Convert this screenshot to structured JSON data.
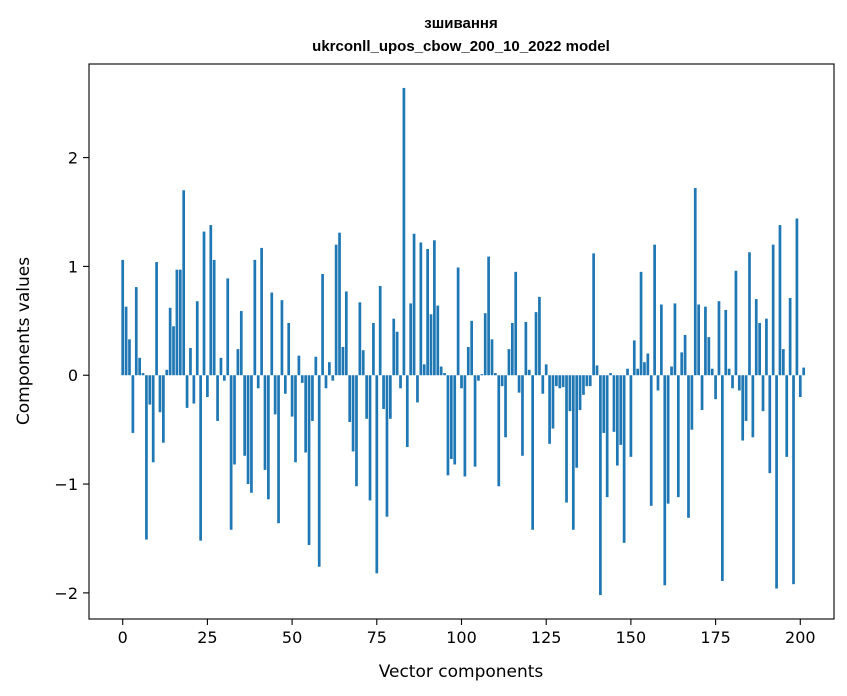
{
  "chart_data": {
    "type": "bar",
    "title": "зшивання",
    "subtitle": "ukrconll_upos_cbow_200_10_2022 model",
    "xlabel": "Vector components",
    "ylabel": "Components values",
    "xlim": [
      -9.95,
      209.95
    ],
    "ylim": [
      -2.24,
      2.86
    ],
    "xticks": [
      0,
      25,
      50,
      75,
      100,
      125,
      150,
      175,
      200
    ],
    "xtick_labels": [
      "0",
      "25",
      "50",
      "75",
      "100",
      "125",
      "150",
      "175",
      "200"
    ],
    "yticks": [
      -2,
      -1,
      0,
      1,
      2
    ],
    "ytick_labels": [
      "−2",
      "−1",
      "0",
      "1",
      "2"
    ],
    "grid": false,
    "bar_color": "#1f77b4",
    "values": [
      1.06,
      0.63,
      0.33,
      -0.53,
      0.81,
      0.16,
      0.02,
      -1.51,
      -0.27,
      -0.8,
      1.04,
      -0.34,
      -0.62,
      0.05,
      0.62,
      0.45,
      0.97,
      0.97,
      1.7,
      -0.3,
      0.25,
      -0.26,
      0.68,
      -1.52,
      1.32,
      -0.2,
      1.38,
      1.06,
      -0.42,
      0.16,
      -0.05,
      0.89,
      -1.42,
      -0.82,
      0.24,
      0.59,
      -0.74,
      -1.0,
      -1.08,
      1.06,
      -0.12,
      1.17,
      -0.87,
      -1.14,
      0.76,
      -0.36,
      -1.36,
      0.69,
      -0.17,
      0.48,
      -0.38,
      -0.8,
      0.18,
      -0.07,
      -0.71,
      -1.56,
      -0.42,
      0.17,
      -1.76,
      0.93,
      -0.12,
      0.12,
      -0.05,
      1.2,
      1.31,
      0.26,
      0.77,
      -0.43,
      -0.7,
      -1.02,
      0.67,
      0.23,
      -0.4,
      -1.15,
      0.48,
      -1.82,
      0.82,
      -0.31,
      -1.3,
      -0.4,
      0.52,
      0.4,
      -0.12,
      2.64,
      -0.66,
      0.66,
      1.3,
      -0.25,
      1.22,
      0.1,
      1.16,
      0.56,
      1.24,
      0.64,
      0.08,
      0.02,
      -0.92,
      -0.77,
      -0.82,
      0.99,
      -0.12,
      -0.93,
      0.26,
      0.5,
      -0.84,
      -0.05,
      0.01,
      0.57,
      1.09,
      0.33,
      0.02,
      -1.02,
      -0.1,
      -0.57,
      0.24,
      0.48,
      0.95,
      -0.16,
      -0.74,
      0.49,
      0.05,
      -1.42,
      0.58,
      0.72,
      -0.17,
      0.1,
      -0.63,
      -0.49,
      -0.1,
      -0.12,
      -0.11,
      -1.17,
      -0.33,
      -1.42,
      -0.85,
      -0.32,
      -0.18,
      -0.1,
      -0.1,
      1.12,
      0.09,
      -2.02,
      -0.53,
      -1.12,
      0.02,
      -0.52,
      -0.83,
      -0.64,
      -1.54,
      0.06,
      -0.75,
      0.32,
      0.06,
      0.95,
      0.12,
      0.2,
      -1.2,
      1.2,
      -0.14,
      0.65,
      -1.93,
      -1.18,
      0.08,
      0.66,
      -1.12,
      0.21,
      0.37,
      -1.31,
      -0.5,
      1.72,
      0.65,
      -0.32,
      0.63,
      0.35,
      0.06,
      -0.22,
      0.68,
      -1.89,
      0.6,
      0.06,
      -0.12,
      0.96,
      -0.14,
      -0.6,
      -0.42,
      1.13,
      -0.57,
      0.7,
      0.48,
      -0.33,
      0.52,
      -0.9,
      1.2,
      -1.96,
      1.38,
      0.24,
      -0.75,
      0.71,
      -1.92,
      1.44,
      -0.2,
      0.07
    ]
  }
}
